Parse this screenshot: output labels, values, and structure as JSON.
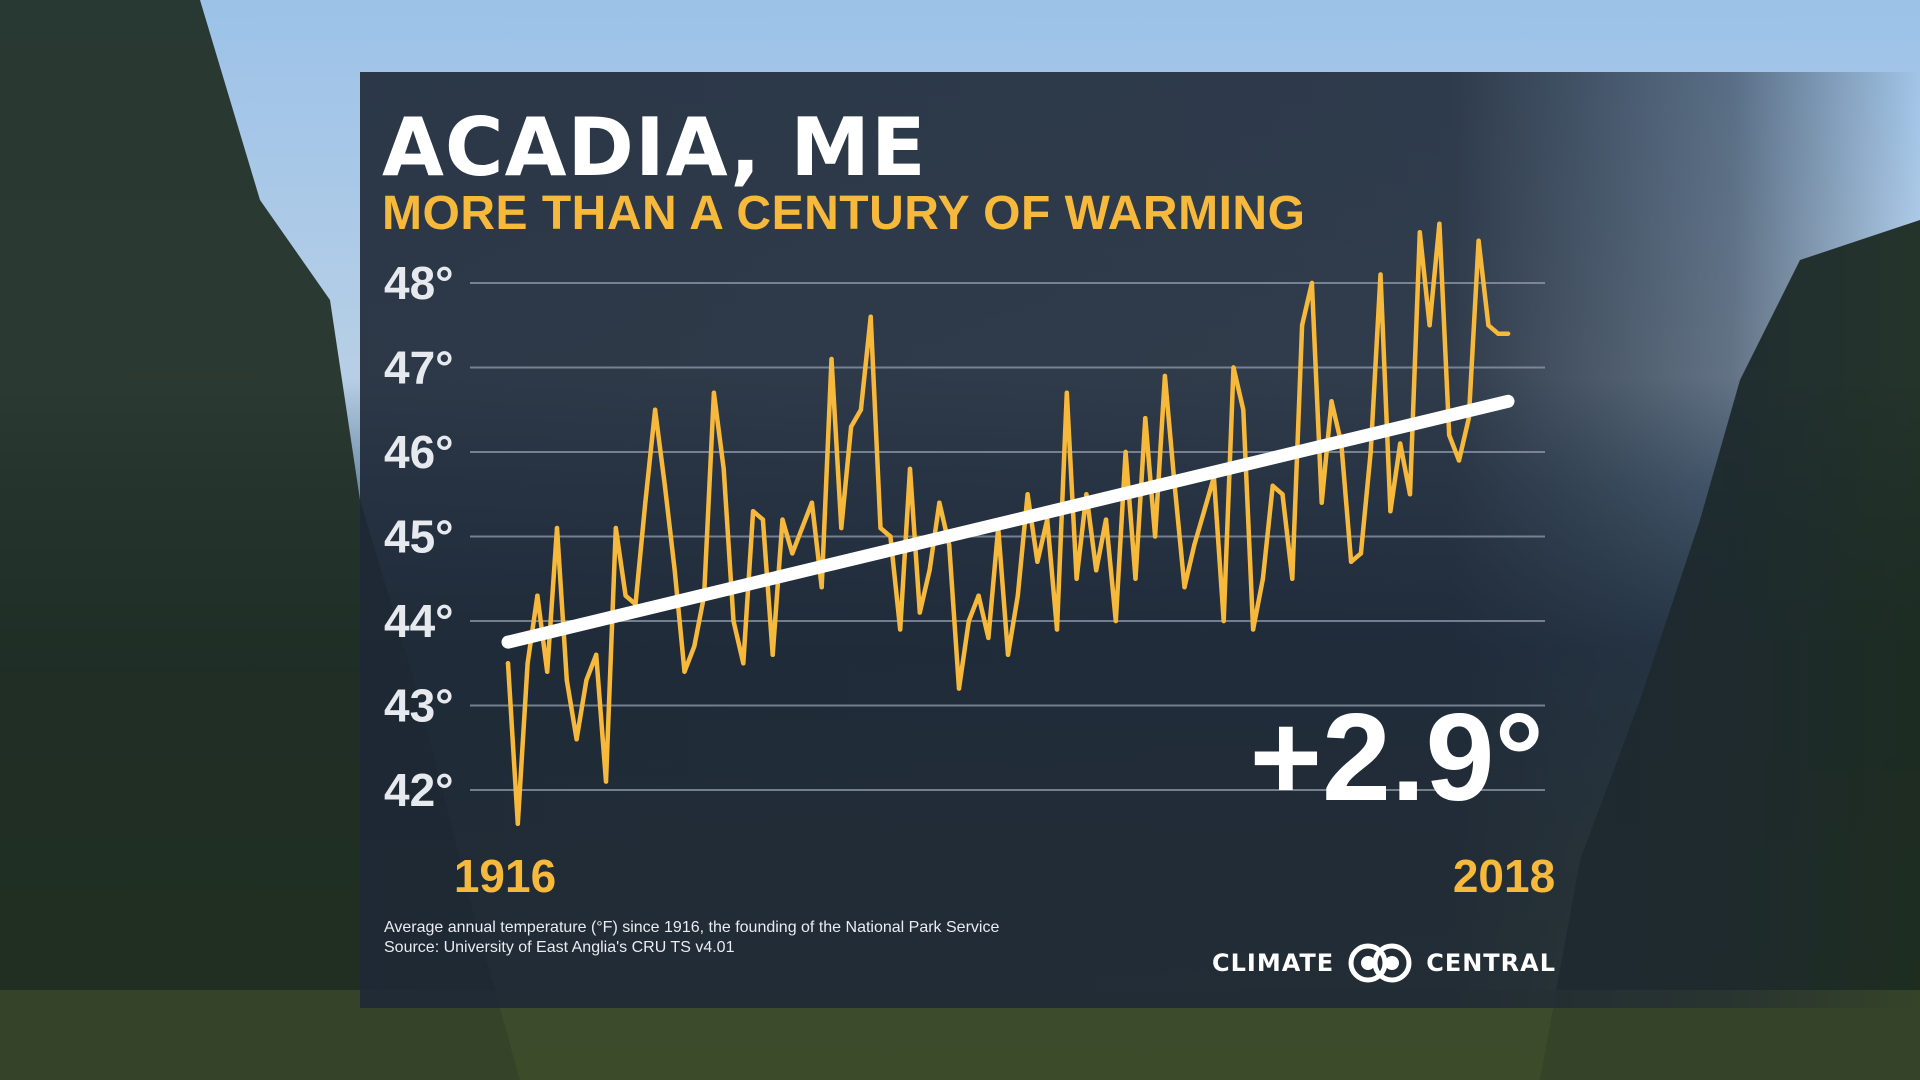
{
  "title": "ACADIA, ME",
  "subtitle": "MORE THAN A CENTURY OF WARMING",
  "change_label": "+2.9°",
  "footnote": {
    "line1": "Average annual temperature (°F) since 1916, the founding of the National Park Service",
    "line2": "Source: University of East Anglia's CRU TS v4.01"
  },
  "logo": {
    "left_word": "CLIMATE",
    "right_word": "CENTRAL"
  },
  "colors": {
    "series": "#f6b93b",
    "trend": "#ffffff",
    "grid": "#8f9bab",
    "panel": "#1e2836"
  },
  "chart_data": {
    "type": "line",
    "ylim": [
      41.5,
      48.5
    ],
    "y_ticks": [
      42,
      43,
      44,
      45,
      46,
      47,
      48
    ],
    "y_tick_labels": [
      "42°",
      "43°",
      "44°",
      "45°",
      "46°",
      "47°",
      "48°"
    ],
    "x_labels": [
      "1916",
      "2018"
    ],
    "grid": true,
    "legend": "none",
    "series": [
      {
        "x": [
          1916,
          1917,
          1918,
          1919,
          1920,
          1921,
          1922,
          1923,
          1924,
          1925,
          1926,
          1927,
          1928,
          1929,
          1930,
          1931,
          1932,
          1933,
          1934,
          1935,
          1936,
          1937,
          1938,
          1939,
          1940,
          1941,
          1942,
          1943,
          1944,
          1945,
          1946,
          1947,
          1948,
          1949,
          1950,
          1951,
          1952,
          1953,
          1954,
          1955,
          1956,
          1957,
          1958,
          1959,
          1960,
          1961,
          1962,
          1963,
          1964,
          1965,
          1966,
          1967,
          1968,
          1969,
          1970,
          1971,
          1972,
          1973,
          1974,
          1975,
          1976,
          1977,
          1978,
          1979,
          1980,
          1981,
          1982,
          1983,
          1984,
          1985,
          1986,
          1987,
          1988,
          1989,
          1990,
          1991,
          1992,
          1993,
          1994,
          1995,
          1996,
          1997,
          1998,
          1999,
          2000,
          2001,
          2002,
          2003,
          2004,
          2005,
          2006,
          2007,
          2008,
          2009,
          2010,
          2011,
          2012,
          2013,
          2014,
          2015,
          2016,
          2017,
          2018
        ],
        "y": [
          43.5,
          41.6,
          43.5,
          44.3,
          43.4,
          45.1,
          43.3,
          42.6,
          43.3,
          43.6,
          42.1,
          45.1,
          44.3,
          44.2,
          45.4,
          46.5,
          45.6,
          44.6,
          43.4,
          43.7,
          44.3,
          46.7,
          45.8,
          44.0,
          43.5,
          45.3,
          45.2,
          43.6,
          45.2,
          44.8,
          45.1,
          45.4,
          44.4,
          47.1,
          45.1,
          46.3,
          46.5,
          47.6,
          45.1,
          45.0,
          43.9,
          45.8,
          44.1,
          44.6,
          45.4,
          44.9,
          43.2,
          44.0,
          44.3,
          43.8,
          45.1,
          43.6,
          44.3,
          45.5,
          44.7,
          45.2,
          43.9,
          46.7,
          44.5,
          45.5,
          44.6,
          45.2,
          44.0,
          46.0,
          44.5,
          46.4,
          45.0,
          46.9,
          45.6,
          44.4,
          44.9,
          45.3,
          45.7,
          44.0,
          47.0,
          46.5,
          43.9,
          44.5,
          45.6,
          45.5,
          44.5,
          47.5,
          48.0,
          45.4,
          46.6,
          46.1,
          44.7,
          44.8,
          46.0,
          48.1,
          45.3,
          46.1,
          45.5,
          48.6,
          47.5,
          48.7,
          46.2,
          45.9,
          46.4,
          48.5,
          47.5,
          47.4,
          47.4
        ]
      }
    ],
    "trend": {
      "start": [
        1916,
        43.75
      ],
      "end": [
        2018,
        46.6
      ]
    }
  }
}
